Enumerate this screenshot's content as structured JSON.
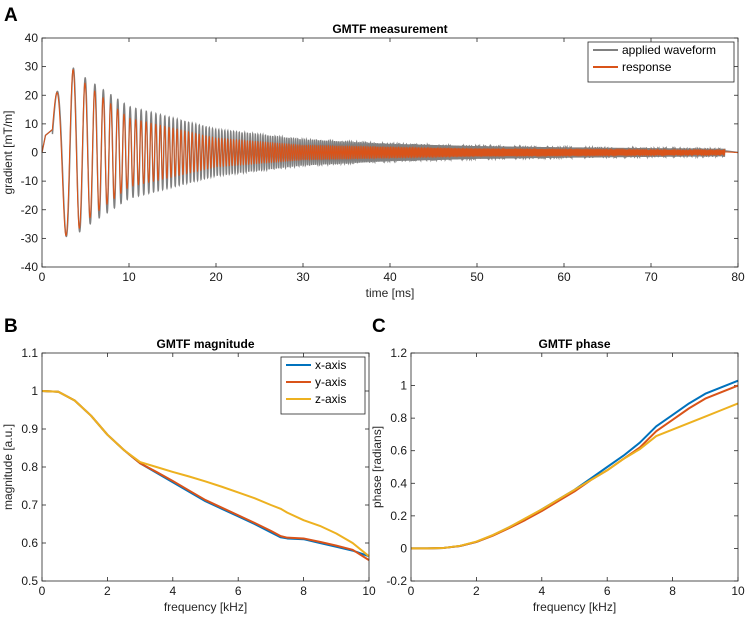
{
  "panel_letters": {
    "a": "A",
    "b": "B",
    "c": "C"
  },
  "colors": {
    "x_axis": "#0072BD",
    "y_axis": "#D95319",
    "z_axis": "#EDB120",
    "applied": "#808080",
    "response": "#D95319"
  },
  "chart_data": [
    {
      "id": "A",
      "type": "line",
      "title": "GMTF measurement",
      "xlabel": "time [ms]",
      "ylabel": "gradient [mT/m]",
      "xlim": [
        0,
        80
      ],
      "ylim": [
        -40,
        40
      ],
      "xticks": [
        0,
        10,
        20,
        30,
        40,
        50,
        60,
        70,
        80
      ],
      "yticks": [
        -40,
        -30,
        -20,
        -10,
        0,
        10,
        20,
        30,
        40
      ],
      "legend_position": "top-right",
      "series": [
        {
          "name": "applied waveform",
          "color": "#808080",
          "description": "chirp waveform, amplitude envelope (mT/m) vs time (ms)",
          "envelope_t": [
            0,
            3,
            5,
            10,
            20,
            30,
            40,
            50,
            60,
            70,
            78.5
          ],
          "envelope_amp": [
            8,
            31,
            26,
            16,
            8,
            4.5,
            3,
            2.2,
            1.8,
            1.5,
            1.3
          ]
        },
        {
          "name": "response",
          "color": "#D95319",
          "description": "measured response, amplitude envelope (mT/m) vs time (ms)",
          "envelope_t": [
            0,
            3,
            5,
            10,
            20,
            30,
            40,
            50,
            60,
            70,
            78.5
          ],
          "envelope_amp": [
            8,
            31,
            24,
            12,
            5,
            2.5,
            1.8,
            1.2,
            1.0,
            0.8,
            0.7
          ]
        }
      ]
    },
    {
      "id": "B",
      "type": "line",
      "title": "GMTF magnitude",
      "xlabel": "frequency [kHz]",
      "ylabel": "magnitude [a.u.]",
      "xlim": [
        0,
        10
      ],
      "ylim": [
        0.5,
        1.1
      ],
      "xticks": [
        0,
        2,
        4,
        6,
        8,
        10
      ],
      "yticks": [
        0.5,
        0.6,
        0.7,
        0.8,
        0.9,
        1,
        1.1
      ],
      "legend_position": "top-right",
      "x": [
        0,
        0.5,
        1,
        1.5,
        2,
        2.5,
        3,
        3.5,
        4,
        4.5,
        5,
        5.5,
        6,
        6.5,
        7,
        7.3,
        7.5,
        8,
        8.5,
        9,
        9.5,
        10
      ],
      "series": [
        {
          "name": "x-axis",
          "color": "#0072BD",
          "values": [
            1.0,
            0.998,
            0.975,
            0.935,
            0.885,
            0.845,
            0.81,
            0.785,
            0.76,
            0.735,
            0.71,
            0.69,
            0.67,
            0.65,
            0.628,
            0.615,
            0.612,
            0.61,
            0.6,
            0.59,
            0.58,
            0.565
          ]
        },
        {
          "name": "y-axis",
          "color": "#D95319",
          "values": [
            1.0,
            0.998,
            0.975,
            0.935,
            0.885,
            0.845,
            0.81,
            0.787,
            0.763,
            0.738,
            0.713,
            0.693,
            0.673,
            0.653,
            0.632,
            0.618,
            0.614,
            0.612,
            0.603,
            0.593,
            0.582,
            0.555
          ]
        },
        {
          "name": "z-axis",
          "color": "#EDB120",
          "values": [
            1.0,
            0.998,
            0.975,
            0.935,
            0.885,
            0.845,
            0.813,
            0.8,
            0.787,
            0.775,
            0.762,
            0.748,
            0.733,
            0.718,
            0.7,
            0.69,
            0.68,
            0.66,
            0.645,
            0.625,
            0.6,
            0.565
          ]
        }
      ]
    },
    {
      "id": "C",
      "type": "line",
      "title": "GMTF phase",
      "xlabel": "frequency [kHz]",
      "ylabel": "phase [radians]",
      "xlim": [
        0,
        10
      ],
      "ylim": [
        -0.2,
        1.2
      ],
      "xticks": [
        0,
        2,
        4,
        6,
        8,
        10
      ],
      "yticks": [
        -0.2,
        0,
        0.2,
        0.4,
        0.6,
        0.8,
        1,
        1.2
      ],
      "x": [
        0,
        0.5,
        1,
        1.5,
        2,
        2.5,
        3,
        3.5,
        4,
        4.5,
        5,
        5.5,
        6,
        6.5,
        7,
        7.5,
        8,
        8.5,
        9,
        9.5,
        10
      ],
      "series": [
        {
          "name": "x-axis",
          "color": "#0072BD",
          "values": [
            0,
            0,
            0.003,
            0.015,
            0.04,
            0.08,
            0.13,
            0.18,
            0.24,
            0.3,
            0.36,
            0.43,
            0.5,
            0.57,
            0.65,
            0.75,
            0.82,
            0.89,
            0.95,
            0.99,
            1.03
          ]
        },
        {
          "name": "y-axis",
          "color": "#D95319",
          "values": [
            0,
            0,
            0.003,
            0.015,
            0.04,
            0.078,
            0.125,
            0.175,
            0.23,
            0.29,
            0.35,
            0.42,
            0.48,
            0.55,
            0.62,
            0.72,
            0.79,
            0.86,
            0.92,
            0.96,
            1.0
          ]
        },
        {
          "name": "z-axis",
          "color": "#EDB120",
          "values": [
            0,
            0,
            0.003,
            0.016,
            0.042,
            0.082,
            0.13,
            0.185,
            0.24,
            0.3,
            0.36,
            0.42,
            0.48,
            0.55,
            0.61,
            0.69,
            0.73,
            0.77,
            0.81,
            0.85,
            0.89
          ]
        }
      ]
    }
  ]
}
